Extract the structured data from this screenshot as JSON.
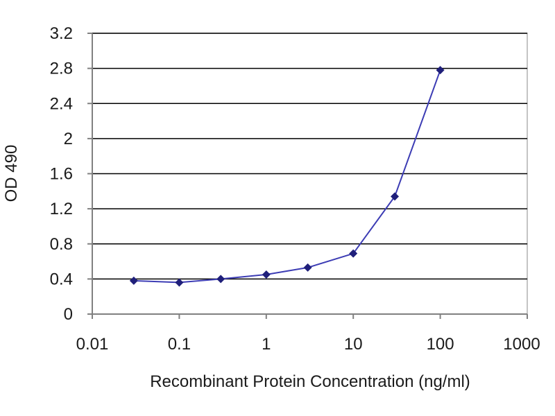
{
  "chart_data": {
    "type": "line",
    "xscale": "log",
    "xlabel": "Recombinant Protein Concentration (ng/ml)",
    "ylabel": "OD 490",
    "xlim": [
      0.01,
      1000
    ],
    "ylim": [
      0,
      3.2
    ],
    "xticks": [
      "0.01",
      "0.1",
      "1",
      "10",
      "100",
      "1000"
    ],
    "yticks": [
      "0",
      "0.4",
      "0.8",
      "1.2",
      "1.6",
      "2",
      "2.4",
      "2.8",
      "3.2"
    ],
    "grid": "horizontal",
    "legend": "none",
    "series": [
      {
        "x": [
          0.03,
          0.1,
          0.3,
          1,
          3,
          10,
          30,
          100
        ],
        "y": [
          0.38,
          0.36,
          0.4,
          0.45,
          0.53,
          0.69,
          1.34,
          2.78
        ]
      }
    ],
    "colors": {
      "line": "#3c3cb4",
      "marker": "#1f1f7a",
      "grid": "#000000",
      "axis": "#808080",
      "plot_border": "#b0b0b0"
    }
  }
}
